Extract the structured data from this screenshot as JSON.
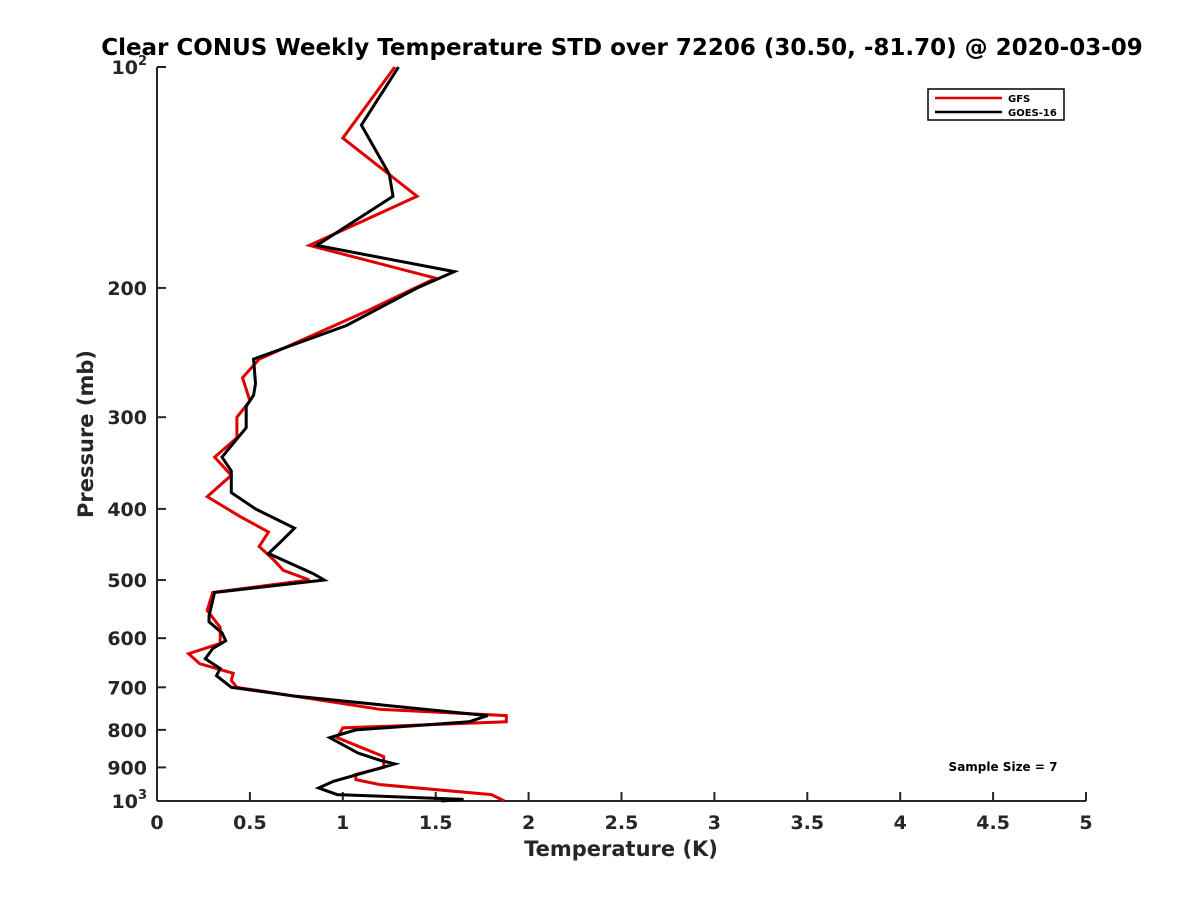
{
  "chart_data": {
    "type": "line",
    "title": "Clear CONUS Weekly Temperature STD over 72206 (30.50, -81.70) @ 2020-03-09",
    "xlabel": "Temperature (K)",
    "ylabel": "Pressure (mb)",
    "xlim": [
      0,
      5
    ],
    "ylim": [
      100,
      1000
    ],
    "yscale": "log",
    "y_reversed": true,
    "xticks": [
      0,
      0.5,
      1,
      1.5,
      2,
      2.5,
      3,
      3.5,
      4,
      4.5,
      5
    ],
    "xtick_labels": [
      "0",
      "0.5",
      "1",
      "1.5",
      "2",
      "2.5",
      "3",
      "3.5",
      "4",
      "4.5",
      "5"
    ],
    "yticks": [
      100,
      200,
      300,
      400,
      500,
      600,
      700,
      800,
      900,
      1000
    ],
    "ytick_labels": [
      {
        "base": "10",
        "exp": "2"
      },
      {
        "base": "200",
        "exp": ""
      },
      {
        "base": "300",
        "exp": ""
      },
      {
        "base": "400",
        "exp": ""
      },
      {
        "base": "500",
        "exp": ""
      },
      {
        "base": "600",
        "exp": ""
      },
      {
        "base": "700",
        "exp": ""
      },
      {
        "base": "800",
        "exp": ""
      },
      {
        "base": "900",
        "exp": ""
      },
      {
        "base": "10",
        "exp": "3"
      }
    ],
    "grid": false,
    "legend_position": "top-right",
    "annotation": "Sample Size = 7",
    "series": [
      {
        "name": "GFS",
        "color": "#e00000",
        "points": [
          [
            1.28,
            100
          ],
          [
            1.0,
            125
          ],
          [
            1.4,
            150
          ],
          [
            0.82,
            175
          ],
          [
            1.5,
            194
          ],
          [
            1.3,
            205
          ],
          [
            1.13,
            215
          ],
          [
            0.55,
            250
          ],
          [
            0.46,
            265
          ],
          [
            0.5,
            285
          ],
          [
            0.43,
            300
          ],
          [
            0.43,
            320
          ],
          [
            0.31,
            340
          ],
          [
            0.4,
            360
          ],
          [
            0.27,
            385
          ],
          [
            0.45,
            410
          ],
          [
            0.6,
            430
          ],
          [
            0.55,
            450
          ],
          [
            0.63,
            470
          ],
          [
            0.68,
            485
          ],
          [
            0.82,
            500
          ],
          [
            0.3,
            520
          ],
          [
            0.27,
            550
          ],
          [
            0.34,
            580
          ],
          [
            0.34,
            610
          ],
          [
            0.17,
            630
          ],
          [
            0.23,
            650
          ],
          [
            0.41,
            670
          ],
          [
            0.4,
            685
          ],
          [
            0.43,
            700
          ],
          [
            1.2,
            750
          ],
          [
            1.88,
            765
          ],
          [
            1.88,
            780
          ],
          [
            1.0,
            795
          ],
          [
            0.97,
            820
          ],
          [
            1.22,
            870
          ],
          [
            1.22,
            900
          ],
          [
            1.07,
            920
          ],
          [
            1.07,
            935
          ],
          [
            1.2,
            950
          ],
          [
            1.8,
            980
          ],
          [
            1.87,
            1000
          ]
        ]
      },
      {
        "name": "GOES-16",
        "color": "#000000",
        "points": [
          [
            1.3,
            100
          ],
          [
            1.1,
            120
          ],
          [
            1.25,
            140
          ],
          [
            1.27,
            150
          ],
          [
            0.86,
            175
          ],
          [
            1.6,
            190
          ],
          [
            1.4,
            200
          ],
          [
            1.02,
            225
          ],
          [
            0.52,
            250
          ],
          [
            0.53,
            270
          ],
          [
            0.52,
            280
          ],
          [
            0.48,
            290
          ],
          [
            0.48,
            310
          ],
          [
            0.35,
            340
          ],
          [
            0.4,
            355
          ],
          [
            0.4,
            380
          ],
          [
            0.53,
            400
          ],
          [
            0.74,
            425
          ],
          [
            0.66,
            445
          ],
          [
            0.6,
            460
          ],
          [
            0.84,
            490
          ],
          [
            0.9,
            500
          ],
          [
            0.31,
            520
          ],
          [
            0.28,
            560
          ],
          [
            0.28,
            570
          ],
          [
            0.35,
            590
          ],
          [
            0.37,
            605
          ],
          [
            0.3,
            620
          ],
          [
            0.26,
            640
          ],
          [
            0.34,
            660
          ],
          [
            0.32,
            675
          ],
          [
            0.4,
            700
          ],
          [
            0.75,
            720
          ],
          [
            1.78,
            765
          ],
          [
            1.68,
            780
          ],
          [
            1.07,
            800
          ],
          [
            0.93,
            820
          ],
          [
            1.08,
            860
          ],
          [
            1.2,
            880
          ],
          [
            1.28,
            890
          ],
          [
            0.95,
            940
          ],
          [
            0.87,
            960
          ],
          [
            0.97,
            980
          ],
          [
            1.65,
            995
          ],
          [
            1.53,
            1000
          ]
        ]
      }
    ]
  }
}
